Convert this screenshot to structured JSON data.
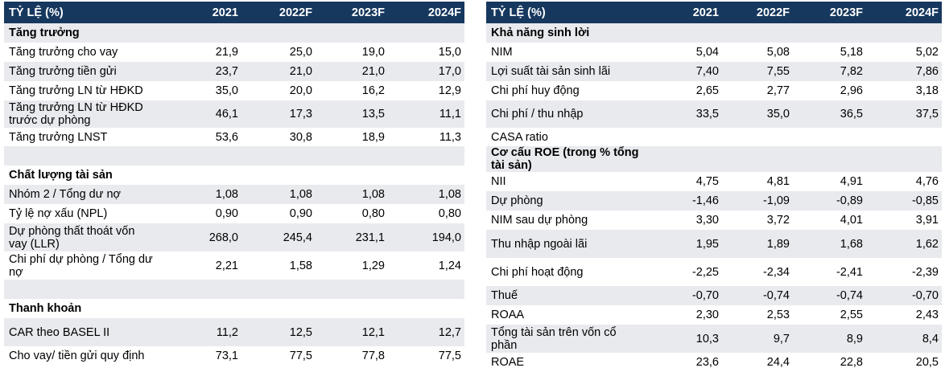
{
  "left": {
    "headers": [
      "TỶ LỆ (%)",
      "2021",
      "2022F",
      "2023F",
      "2024F"
    ],
    "rows": [
      {
        "label": "Tăng trưởng",
        "values": [
          "",
          "",
          "",
          ""
        ],
        "section": true,
        "h": 24
      },
      {
        "label": "Tăng trưởng cho vay",
        "values": [
          "21,9",
          "25,0",
          "19,0",
          "15,0"
        ],
        "h": 24
      },
      {
        "label": "Tăng trưởng tiền gửi",
        "values": [
          "23,7",
          "21,0",
          "21,0",
          "17,0"
        ],
        "h": 24
      },
      {
        "label": "Tăng trưởng LN từ HĐKD",
        "values": [
          "35,0",
          "20,0",
          "16,2",
          "12,9"
        ],
        "h": 24
      },
      {
        "label": "Tăng trưởng LN từ HĐKD trước dự phòng",
        "values": [
          "46,1",
          "17,3",
          "13,5",
          "11,1"
        ],
        "h": 34
      },
      {
        "label": "Tăng trưởng LNST",
        "values": [
          "53,6",
          "30,8",
          "18,9",
          "11,3"
        ],
        "h": 23
      },
      {
        "label": "",
        "values": [
          "",
          "",
          "",
          ""
        ],
        "h": 24
      },
      {
        "label": "Chất lượng tài sản",
        "values": [
          "",
          "",
          "",
          ""
        ],
        "section": true,
        "h": 24
      },
      {
        "label": "Nhóm 2 / Tổng dư nợ",
        "values": [
          "1,08",
          "1,08",
          "1,08",
          "1,08"
        ],
        "h": 24
      },
      {
        "label": "Tỷ lệ nợ xấu (NPL)",
        "values": [
          "0,90",
          "0,90",
          "0,80",
          "0,80"
        ],
        "h": 24
      },
      {
        "label": "Dự phòng thất thoát vốn vay (LLR)",
        "values": [
          "268,0",
          "245,4",
          "231,1",
          "194,0"
        ],
        "h": 35
      },
      {
        "label": "Chi phí dự phòng / Tổng dư nợ",
        "values": [
          "2,21",
          "1,58",
          "1,29",
          "1,24"
        ],
        "h": 35
      },
      {
        "label": "",
        "values": [
          "",
          "",
          "",
          ""
        ],
        "h": 24
      },
      {
        "label": "Thanh khoản",
        "values": [
          "",
          "",
          "",
          ""
        ],
        "section": true,
        "h": 24
      },
      {
        "label": "CAR theo BASEL II",
        "values": [
          "11,2",
          "12,5",
          "12,1",
          "12,7"
        ],
        "h": 35
      },
      {
        "label": "Cho vay/ tiền gửi quy định",
        "values": [
          "73,1",
          "77,5",
          "77,8",
          "77,5"
        ],
        "h": 24
      }
    ]
  },
  "right": {
    "headers": [
      "TỶ LỆ (%)",
      "2021",
      "2022F",
      "2023F",
      "2024F"
    ],
    "rows": [
      {
        "label": "Khả năng sinh lời",
        "values": [
          "",
          "",
          "",
          ""
        ],
        "section": true,
        "h": 24
      },
      {
        "label": "NIM",
        "values": [
          "5,04",
          "5,08",
          "5,18",
          "5,02"
        ],
        "h": 24
      },
      {
        "label": "Lợi suất tài sản sinh lãi",
        "values": [
          "7,40",
          "7,55",
          "7,82",
          "7,86"
        ],
        "h": 24
      },
      {
        "label": "Chi phí huy động",
        "values": [
          "2,65",
          "2,77",
          "2,96",
          "3,18"
        ],
        "h": 24
      },
      {
        "label": "Chi phí / thu nhập",
        "values": [
          "33,5",
          "35,0",
          "36,5",
          "37,5"
        ],
        "h": 34
      },
      {
        "label": "CASA ratio",
        "values": [
          "",
          "",
          "",
          ""
        ],
        "h": 23
      },
      {
        "label": "Cơ cấu ROE (trong % tổng tài sản)",
        "values": [
          "",
          "",
          "",
          ""
        ],
        "section": true,
        "h": 24
      },
      {
        "label": "NII",
        "values": [
          "4,75",
          "4,81",
          "4,91",
          "4,76"
        ],
        "h": 24
      },
      {
        "label": "Dự phòng",
        "values": [
          "-1,46",
          "-1,09",
          "-0,89",
          "-0,85"
        ],
        "h": 24
      },
      {
        "label": "NIM sau dự phòng",
        "values": [
          "3,30",
          "3,72",
          "4,01",
          "3,91"
        ],
        "h": 24
      },
      {
        "label": "Thu nhập ngoài lãi",
        "values": [
          "1,95",
          "1,89",
          "1,68",
          "1,62"
        ],
        "h": 35
      },
      {
        "label": "Chi phí hoạt động",
        "values": [
          "-2,25",
          "-2,34",
          "-2,41",
          "-2,39"
        ],
        "h": 35
      },
      {
        "label": "Thuế",
        "values": [
          "-0,70",
          "-0,74",
          "-0,74",
          "-0,70"
        ],
        "h": 24
      },
      {
        "label": "ROAA",
        "values": [
          "2,30",
          "2,53",
          "2,55",
          "2,43"
        ],
        "h": 24
      },
      {
        "label": "Tổng tài sản trên vốn cổ phần",
        "values": [
          "10,3",
          "9,7",
          "8,9",
          "8,4"
        ],
        "h": 35
      },
      {
        "label": "ROAE",
        "values": [
          "23,6",
          "24,4",
          "22,8",
          "20,5"
        ],
        "h": 24
      }
    ]
  }
}
